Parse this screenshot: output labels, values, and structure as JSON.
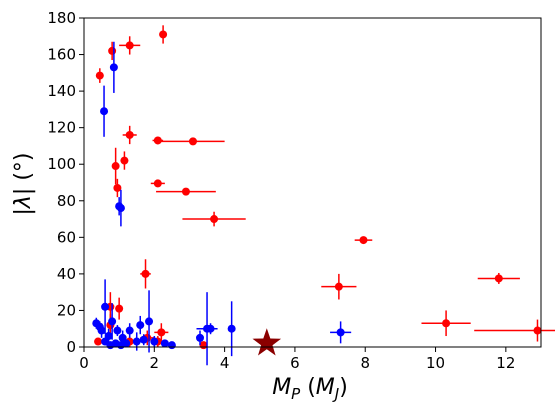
{
  "chart_data": {
    "type": "scatter",
    "title": "",
    "xlabel": "M_P (M_J)",
    "ylabel": "|λ| (°)",
    "xlim": [
      0,
      13
    ],
    "ylim": [
      0,
      180
    ],
    "xticks": [
      0,
      2,
      4,
      6,
      8,
      10,
      12
    ],
    "yticks": [
      0,
      20,
      40,
      60,
      80,
      100,
      120,
      140,
      160,
      180
    ],
    "grid": false,
    "colors": {
      "red": "#ff0000",
      "blue": "#0000ff",
      "star": "#8b0000"
    },
    "series": [
      {
        "color": "red",
        "points": [
          {
            "x": 0.45,
            "y": 148.5,
            "xerr": 0.05,
            "yerr": 4
          },
          {
            "x": 0.8,
            "y": 162,
            "xerr": 0.05,
            "yerr": 5
          },
          {
            "x": 1.3,
            "y": 165,
            "xerr": 0.3,
            "yerr": 5
          },
          {
            "x": 2.25,
            "y": 171,
            "xerr": 0.05,
            "yerr": 5
          },
          {
            "x": 1.3,
            "y": 116,
            "xerr": 0.2,
            "yerr": 5
          },
          {
            "x": 2.1,
            "y": 113,
            "xerr": 0.15,
            "yerr": 2
          },
          {
            "x": 3.1,
            "y": 112.5,
            "xerr": 0.9,
            "yerr": 2
          },
          {
            "x": 1.15,
            "y": 102,
            "xerr": 0.1,
            "yerr": 5
          },
          {
            "x": 0.9,
            "y": 99,
            "xerr": 0.05,
            "yerr": 10
          },
          {
            "x": 0.95,
            "y": 87,
            "xerr": 0.1,
            "yerr": 5
          },
          {
            "x": 2.1,
            "y": 89.5,
            "xerr": 0.2,
            "yerr": 2
          },
          {
            "x": 2.9,
            "y": 85,
            "xerr": 0.85,
            "yerr": 2
          },
          {
            "x": 3.7,
            "y": 70,
            "xerr": 0.9,
            "yerr": 4
          },
          {
            "x": 7.95,
            "y": 58.5,
            "xerr": 0.25,
            "yerr": 1
          },
          {
            "x": 1.75,
            "y": 40,
            "xerr": 0.15,
            "yerr": 8
          },
          {
            "x": 7.25,
            "y": 33,
            "xerr": 0.5,
            "yerr": 7
          },
          {
            "x": 11.8,
            "y": 37.5,
            "xerr": 0.6,
            "yerr": 3
          },
          {
            "x": 0.75,
            "y": 22,
            "xerr": 0.1,
            "yerr": 8
          },
          {
            "x": 1.0,
            "y": 21,
            "xerr": 0.1,
            "yerr": 6
          },
          {
            "x": 0.75,
            "y": 12,
            "xerr": 0.1,
            "yerr": 6
          },
          {
            "x": 10.3,
            "y": 13,
            "xerr": 0.7,
            "yerr": 7
          },
          {
            "x": 12.9,
            "y": 9,
            "xerr": 1.8,
            "yerr": 6
          },
          {
            "x": 2.2,
            "y": 8,
            "xerr": 0.2,
            "yerr": 5
          },
          {
            "x": 1.8,
            "y": 5,
            "xerr": 0.2,
            "yerr": 4
          },
          {
            "x": 0.4,
            "y": 3,
            "xerr": 0.1,
            "yerr": 2
          },
          {
            "x": 1.3,
            "y": 3,
            "xerr": 0.1,
            "yerr": 3
          },
          {
            "x": 2.1,
            "y": 3,
            "xerr": 0.2,
            "yerr": 3
          },
          {
            "x": 3.4,
            "y": 1,
            "xerr": 0.1,
            "yerr": 2
          }
        ]
      },
      {
        "color": "blue",
        "points": [
          {
            "x": 0.85,
            "y": 153,
            "xerr": 0.03,
            "yerr": 14
          },
          {
            "x": 0.57,
            "y": 129,
            "xerr": 0.03,
            "yerr": 14
          },
          {
            "x": 1.0,
            "y": 77,
            "xerr": 0.03,
            "yerr": 5
          },
          {
            "x": 1.05,
            "y": 76,
            "xerr": 0.03,
            "yerr": 10
          },
          {
            "x": 0.6,
            "y": 22,
            "xerr": 0.03,
            "yerr": 15
          },
          {
            "x": 0.8,
            "y": 14,
            "xerr": 0.05,
            "yerr": 10
          },
          {
            "x": 1.85,
            "y": 14,
            "xerr": 0.05,
            "yerr": 17
          },
          {
            "x": 0.35,
            "y": 13,
            "xerr": 0.05,
            "yerr": 3
          },
          {
            "x": 0.45,
            "y": 11,
            "xerr": 0.05,
            "yerr": 3
          },
          {
            "x": 0.5,
            "y": 9,
            "xerr": 0.05,
            "yerr": 4
          },
          {
            "x": 1.6,
            "y": 12,
            "xerr": 0.05,
            "yerr": 5
          },
          {
            "x": 1.3,
            "y": 9,
            "xerr": 0.1,
            "yerr": 4
          },
          {
            "x": 0.95,
            "y": 9,
            "xerr": 0.05,
            "yerr": 3
          },
          {
            "x": 3.5,
            "y": 10,
            "xerr": 0.3,
            "yerr": 20
          },
          {
            "x": 3.6,
            "y": 10,
            "xerr": 0.15,
            "yerr": 3
          },
          {
            "x": 4.2,
            "y": 10,
            "xerr": 0.05,
            "yerr": 15
          },
          {
            "x": 7.3,
            "y": 8,
            "xerr": 0.3,
            "yerr": 6
          },
          {
            "x": 3.3,
            "y": 5,
            "xerr": 0.1,
            "yerr": 4
          },
          {
            "x": 0.7,
            "y": 6,
            "xerr": 0.05,
            "yerr": 4
          },
          {
            "x": 1.1,
            "y": 5,
            "xerr": 0.05,
            "yerr": 4
          },
          {
            "x": 0.6,
            "y": 3,
            "xerr": 0.05,
            "yerr": 2
          },
          {
            "x": 0.9,
            "y": 2,
            "xerr": 0.05,
            "yerr": 2
          },
          {
            "x": 1.2,
            "y": 2,
            "xerr": 0.1,
            "yerr": 2
          },
          {
            "x": 1.5,
            "y": 3,
            "xerr": 0.1,
            "yerr": 5
          },
          {
            "x": 1.7,
            "y": 4,
            "xerr": 0.1,
            "yerr": 3
          },
          {
            "x": 2.0,
            "y": 3,
            "xerr": 0.1,
            "yerr": 3
          },
          {
            "x": 2.3,
            "y": 2,
            "xerr": 0.1,
            "yerr": 2
          },
          {
            "x": 2.5,
            "y": 1,
            "xerr": 0.1,
            "yerr": 2
          },
          {
            "x": 0.75,
            "y": 1,
            "xerr": 0.05,
            "yerr": 2
          },
          {
            "x": 1.05,
            "y": 1,
            "xerr": 0.05,
            "yerr": 2
          }
        ]
      }
    ],
    "markers": [
      {
        "x": 5.2,
        "y": 2,
        "shape": "star",
        "color": "star"
      }
    ]
  }
}
